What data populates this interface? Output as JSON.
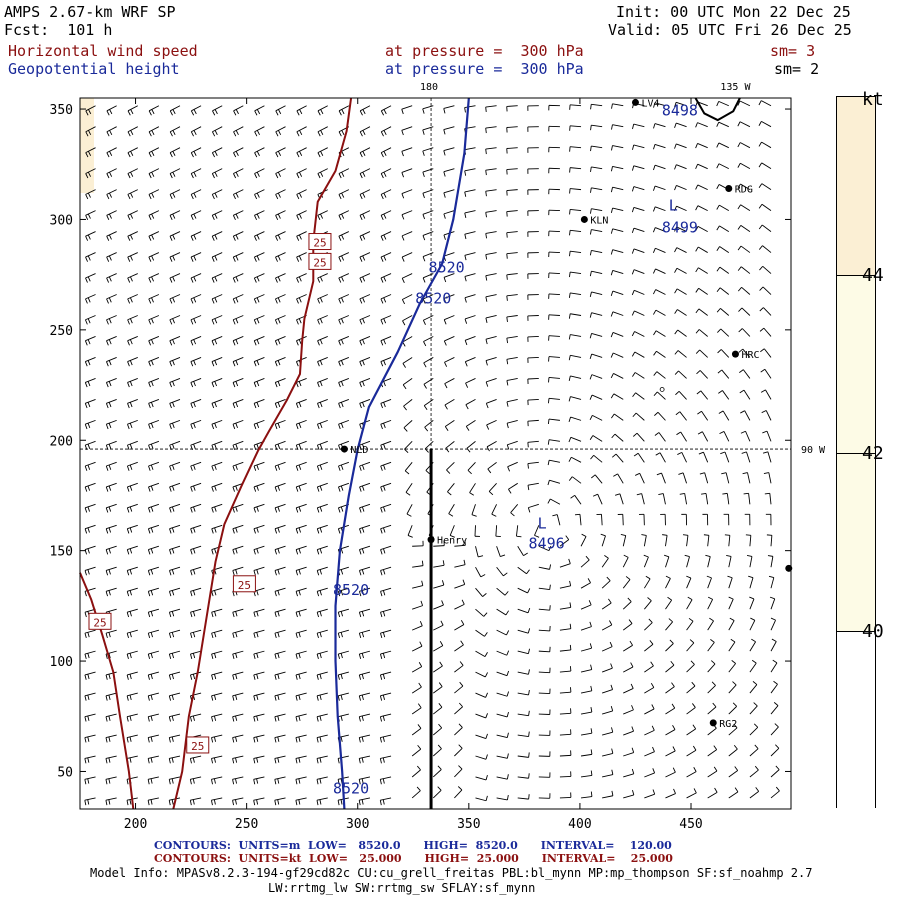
{
  "header": {
    "model": "AMPS 2.67-km WRF SP",
    "fcst": "Fcst:  101 h",
    "init": "Init: 00 UTC Mon 22 Dec 25",
    "valid": "Valid: 05 UTC Fri 26 Dec 25",
    "field1": "Horizontal wind speed",
    "field2": "Geopotential height",
    "pressure1": "at pressure =  300 hPa",
    "pressure2": "at pressure =  300 hPa",
    "sm1": "sm= 3",
    "sm2": "sm= 2"
  },
  "map": {
    "x_ticks": [
      "200",
      "250",
      "300",
      "350",
      "400",
      "450"
    ],
    "y_ticks": [
      "350",
      "300",
      "250",
      "200",
      "150",
      "100",
      "50"
    ],
    "lon_labels": {
      "top_180": "180",
      "top_135w": "135 W",
      "right_90w": "90 W"
    },
    "stations": [
      {
        "name": "LV4",
        "x": 425,
        "y": 353
      },
      {
        "name": "RDG",
        "x": 467,
        "y": 314
      },
      {
        "name": "KLN",
        "x": 402,
        "y": 300
      },
      {
        "name": "HRC",
        "x": 470,
        "y": 239
      },
      {
        "name": "NLD",
        "x": 294,
        "y": 196
      },
      {
        "name": "Henry",
        "x": 333,
        "y": 155
      },
      {
        "name": "RG2",
        "x": 460,
        "y": 72
      }
    ],
    "height_labels": [
      {
        "text": "8498",
        "x": 445,
        "y": 347
      },
      {
        "text": "8499",
        "x": 445,
        "y": 294
      },
      {
        "text": "L",
        "x": 442,
        "y": 304
      },
      {
        "text": "8520",
        "x": 340,
        "y": 276
      },
      {
        "text": "8520",
        "x": 334,
        "y": 262
      },
      {
        "text": "L",
        "x": 383,
        "y": 160
      },
      {
        "text": "8496",
        "x": 385,
        "y": 151
      },
      {
        "text": "8520",
        "x": 297,
        "y": 130
      },
      {
        "text": "8520",
        "x": 297,
        "y": 40
      }
    ],
    "speed_labels": [
      {
        "text": "25",
        "x": 283,
        "y": 290
      },
      {
        "text": "25",
        "x": 283,
        "y": 281
      },
      {
        "text": "25",
        "x": 249,
        "y": 135
      },
      {
        "text": "25",
        "x": 184,
        "y": 118
      },
      {
        "text": "25",
        "x": 228,
        "y": 62
      }
    ]
  },
  "colorbar": {
    "unit": "kt",
    "labels": [
      "44",
      "42",
      "40"
    ],
    "colors": {
      "band_top": "#fbefd4",
      "band_mid": "#fdfbe6",
      "band_low": "#ffffff"
    }
  },
  "footer": {
    "blue_contours": "CONTOURS:  UNITS=m  LOW=   8520.0      HIGH=  8520.0      INTERVAL=    120.00",
    "red_contours": "CONTOURS:  UNITS=kt  LOW=   25.000      HIGH=  25.000      INTERVAL=    25.000",
    "model_info": "Model Info: MPASv8.2.3-194-gf29cd82c CU:cu_grell_freitas PBL:bl_mynn MP:mp_thompson SF:sf_noahmp 2.7",
    "model_info2": "LW:rrtmg_lw SW:rrtmg_sw SFLAY:sf_mynn"
  },
  "colors": {
    "speed_contour": "#8b1010",
    "height_contour": "#1a2a9a"
  }
}
